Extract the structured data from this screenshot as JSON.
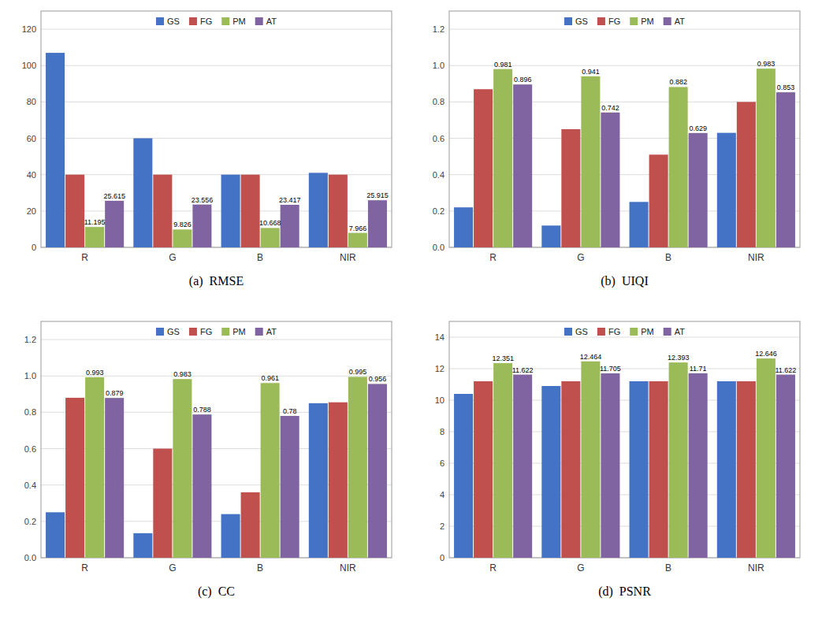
{
  "chart_data": [
    {
      "type": "bar",
      "title": "(a)  RMSE",
      "categories": [
        "R",
        "G",
        "B",
        "NIR"
      ],
      "series": [
        {
          "name": "GS",
          "color": "#4472C4",
          "values": [
            107.0,
            60.0,
            40.0,
            41.0
          ]
        },
        {
          "name": "FG",
          "color": "#C0504D",
          "values": [
            40.0,
            40.0,
            40.0,
            40.0
          ]
        },
        {
          "name": "PM",
          "color": "#9BBB59",
          "values": [
            11.195,
            9.826,
            10.668,
            7.966
          ],
          "data_labels": true
        },
        {
          "name": "AT",
          "color": "#8064A2",
          "values": [
            25.615,
            23.556,
            23.417,
            25.915
          ],
          "data_labels": true
        }
      ],
      "ylim": [
        0,
        130
      ],
      "yticks": [
        0,
        20,
        40,
        60,
        80,
        100,
        120
      ],
      "grid": true,
      "legend": "top"
    },
    {
      "type": "bar",
      "title": "(b)  UIQI",
      "categories": [
        "R",
        "G",
        "B",
        "NIR"
      ],
      "series": [
        {
          "name": "GS",
          "color": "#4472C4",
          "values": [
            0.22,
            0.12,
            0.25,
            0.63
          ]
        },
        {
          "name": "FG",
          "color": "#C0504D",
          "values": [
            0.87,
            0.65,
            0.51,
            0.8
          ]
        },
        {
          "name": "PM",
          "color": "#9BBB59",
          "values": [
            0.981,
            0.941,
            0.882,
            0.983
          ],
          "data_labels": true
        },
        {
          "name": "AT",
          "color": "#8064A2",
          "values": [
            0.896,
            0.742,
            0.629,
            0.853
          ],
          "data_labels": true
        }
      ],
      "ylim": [
        0,
        1.3
      ],
      "yticks": [
        {
          "value": 0,
          "label": "0.0"
        },
        0.2,
        0.4,
        0.6,
        0.8,
        {
          "value": 1.0,
          "label": "1.0"
        },
        1.2
      ],
      "grid": true,
      "legend": "top"
    },
    {
      "type": "bar",
      "title": "(c)  CC",
      "categories": [
        "R",
        "G",
        "B",
        "NIR"
      ],
      "series": [
        {
          "name": "GS",
          "color": "#4472C4",
          "values": [
            0.25,
            0.135,
            0.24,
            0.85
          ]
        },
        {
          "name": "FG",
          "color": "#C0504D",
          "values": [
            0.88,
            0.6,
            0.36,
            0.855
          ]
        },
        {
          "name": "PM",
          "color": "#9BBB59",
          "values": [
            0.993,
            0.983,
            0.961,
            0.995
          ],
          "data_labels": true
        },
        {
          "name": "AT",
          "color": "#8064A2",
          "values": [
            0.879,
            0.788,
            0.78,
            0.956
          ],
          "data_labels": true
        }
      ],
      "ylim": [
        0,
        1.3
      ],
      "yticks": [
        {
          "value": 0,
          "label": "0.0"
        },
        0.2,
        0.4,
        0.6,
        0.8,
        {
          "value": 1.0,
          "label": "1.0"
        },
        1.2
      ],
      "grid": true,
      "legend": "top"
    },
    {
      "type": "bar",
      "title": "(d)  PSNR",
      "categories": [
        "R",
        "G",
        "B",
        "NIR"
      ],
      "series": [
        {
          "name": "GS",
          "color": "#4472C4",
          "values": [
            10.4,
            10.9,
            11.2,
            11.2
          ]
        },
        {
          "name": "FG",
          "color": "#C0504D",
          "values": [
            11.2,
            11.2,
            11.2,
            11.2
          ]
        },
        {
          "name": "PM",
          "color": "#9BBB59",
          "values": [
            12.351,
            12.464,
            12.393,
            12.646
          ],
          "data_labels": true
        },
        {
          "name": "AT",
          "color": "#8064A2",
          "values": [
            11.622,
            11.705,
            11.71,
            11.622
          ],
          "data_labels": true
        }
      ],
      "ylim": [
        0,
        15
      ],
      "yticks": [
        0,
        2,
        4,
        6,
        8,
        10,
        12,
        14
      ],
      "grid": true,
      "legend": "top"
    }
  ]
}
